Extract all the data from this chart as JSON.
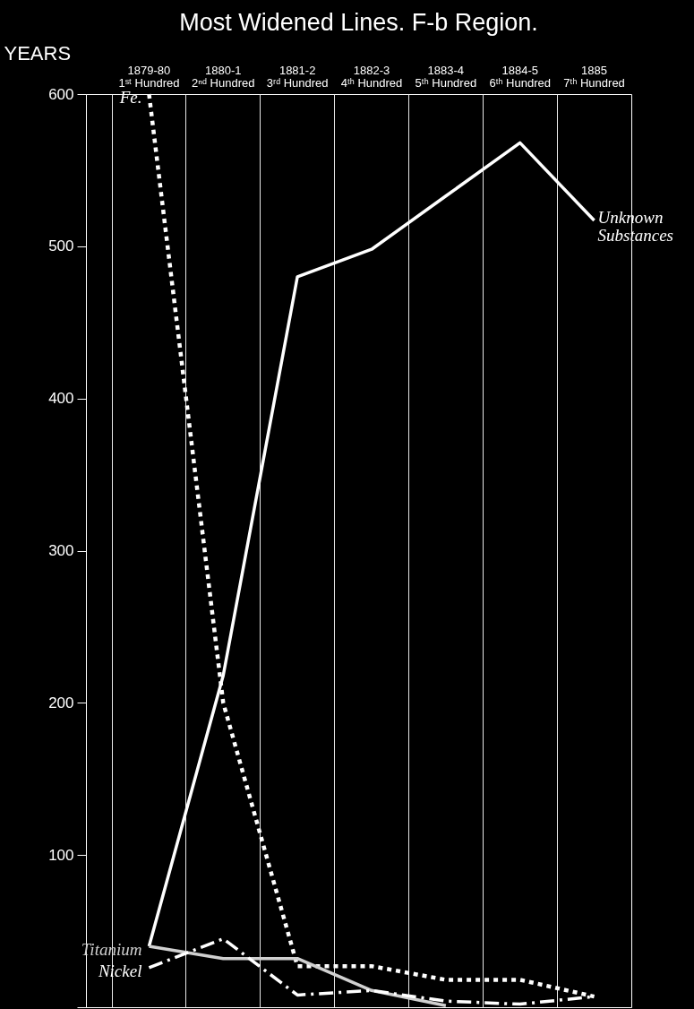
{
  "chart_data": {
    "type": "line",
    "title": "Most Widened Lines.  F-b Region.",
    "xlabel": "YEARS",
    "categories": [
      "1879-80\n1ˢᵗ Hundred",
      "1880-1\n2ⁿᵈ Hundred",
      "1881-2\n3ʳᵈ Hundred",
      "1882-3\n4ᵗʰ Hundred",
      "1883-4\n5ᵗʰ Hundred",
      "1884-5\n6ᵗʰ Hundred",
      "1885\n7ᵗʰ Hundred"
    ],
    "series": [
      {
        "name": "Unknown Substances",
        "color": "#ffffff",
        "line_style": "solid",
        "values": [
          40,
          218,
          480,
          498,
          533,
          568,
          517
        ]
      },
      {
        "name": "Fe.",
        "color": "#ffffff",
        "line_style": "dotted",
        "values": [
          600,
          200,
          27,
          27,
          18,
          18,
          7
        ]
      },
      {
        "name": "Titanium",
        "color": "#d0d0d0",
        "line_style": "solid",
        "values": [
          40,
          32,
          32,
          11,
          1,
          null,
          null
        ]
      },
      {
        "name": "Nickel",
        "color": "#ffffff",
        "line_style": "dashed",
        "values": [
          26,
          45,
          8,
          11,
          4,
          2,
          7
        ]
      }
    ],
    "ylim": [
      0,
      600
    ],
    "yticks": [
      {
        "value": 0,
        "label": null
      },
      100,
      200,
      300,
      400,
      500,
      600
    ],
    "grid": "x"
  }
}
